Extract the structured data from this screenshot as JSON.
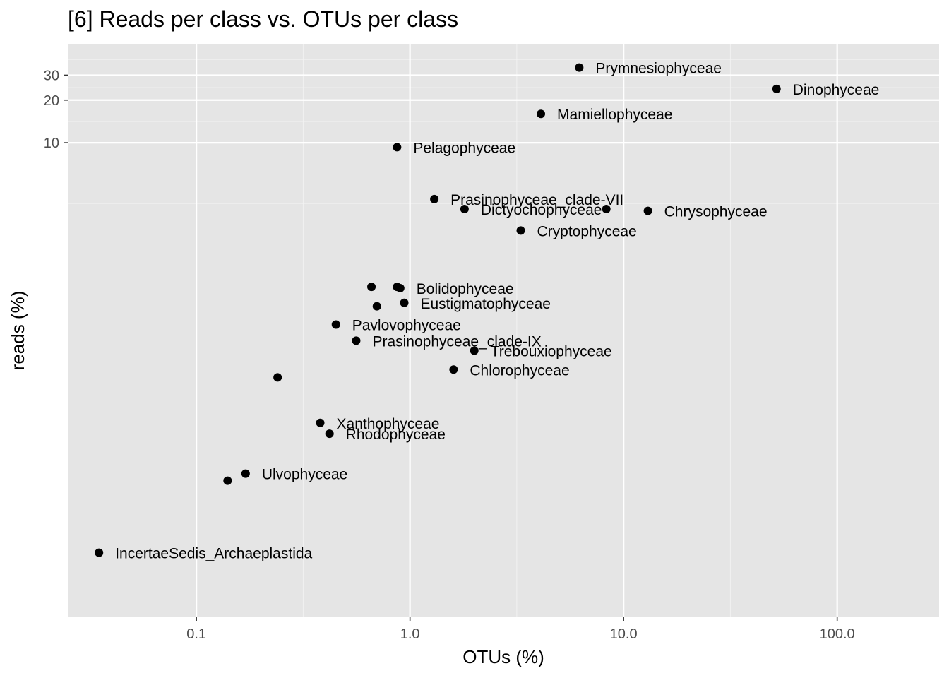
{
  "chart_data": {
    "type": "scatter",
    "title": "[6] Reads per class vs. OTUs per class",
    "xlabel": "OTUs (%)",
    "ylabel": "reads (%)",
    "x_scale": "log10",
    "y_scale": "log10",
    "xlim": [
      0.025,
      300
    ],
    "ylim": [
      0.0045,
      50
    ],
    "x_ticks": [
      {
        "value": 0.1,
        "label": "0.1"
      },
      {
        "value": 1,
        "label": "1.0"
      },
      {
        "value": 10,
        "label": "10.0"
      },
      {
        "value": 100,
        "label": "100.0"
      }
    ],
    "y_ticks": [
      {
        "value": 10,
        "label": "10"
      },
      {
        "value": 20,
        "label": "20"
      },
      {
        "value": 30,
        "label": "30"
      }
    ],
    "grid": true,
    "legend": "none",
    "points": [
      {
        "label": "Prymnesiophyceae",
        "x": 6.2,
        "y": 34
      },
      {
        "label": "Dinophyceae",
        "x": 52,
        "y": 24
      },
      {
        "label": "Mamiellophyceae",
        "x": 4.1,
        "y": 16
      },
      {
        "label": "Pelagophyceae",
        "x": 0.87,
        "y": 9.3
      },
      {
        "label": "Prasinophyceae_clade-VII",
        "x": 1.3,
        "y": 4.0
      },
      {
        "label": "Dictyochophyceae",
        "x": 1.8,
        "y": 3.4
      },
      {
        "label": "",
        "x": 8.3,
        "y": 3.4
      },
      {
        "label": "Chrysophyceae",
        "x": 13,
        "y": 3.3
      },
      {
        "label": "Cryptophyceae",
        "x": 3.3,
        "y": 2.4
      },
      {
        "label": "",
        "x": 0.66,
        "y": 0.96
      },
      {
        "label": "",
        "x": 0.87,
        "y": 0.96
      },
      {
        "label": "Bolidophyceae",
        "x": 0.9,
        "y": 0.94
      },
      {
        "label": "Eustigmatophyceae",
        "x": 0.94,
        "y": 0.74
      },
      {
        "label": "",
        "x": 0.7,
        "y": 0.7
      },
      {
        "label": "Pavlovophyceae",
        "x": 0.45,
        "y": 0.52
      },
      {
        "label": "Prasinophyceae_clade-IX",
        "x": 0.56,
        "y": 0.4
      },
      {
        "label": "Trebouxiophyceae",
        "x": 2.0,
        "y": 0.34
      },
      {
        "label": "Chlorophyceae",
        "x": 1.6,
        "y": 0.25
      },
      {
        "label": "",
        "x": 0.24,
        "y": 0.22
      },
      {
        "label": "Xanthophyceae",
        "x": 0.38,
        "y": 0.105
      },
      {
        "label": "Rhodophyceae",
        "x": 0.42,
        "y": 0.088
      },
      {
        "label": "Ulvophyceae",
        "x": 0.17,
        "y": 0.046
      },
      {
        "label": "",
        "x": 0.14,
        "y": 0.041
      },
      {
        "label": "IncertaeSedis_Archaeplastida",
        "x": 0.035,
        "y": 0.0127
      }
    ]
  }
}
